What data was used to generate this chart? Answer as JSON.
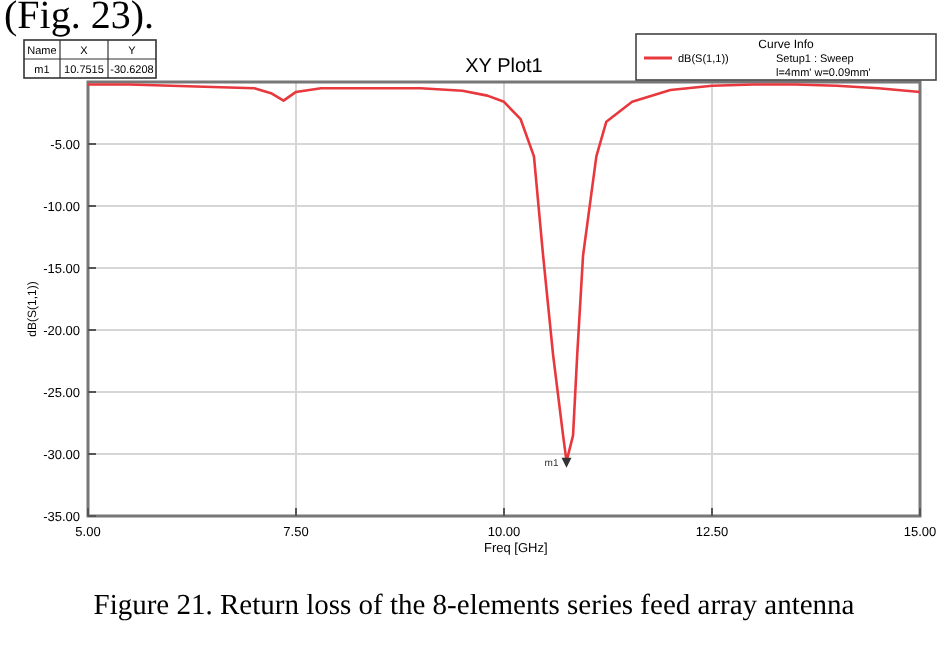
{
  "chart_data": {
    "type": "line",
    "title": "XY Plot1",
    "xlabel": "Freq [GHz]",
    "ylabel": "dB(S(1,1))",
    "legend_title": "Curve Info",
    "xlim": [
      5,
      15
    ],
    "xticks": [
      {
        "value": 5,
        "label": "5.00"
      },
      {
        "value": 7.5,
        "label": "7.50"
      },
      {
        "value": 10,
        "label": "10.00"
      },
      {
        "value": 12.5,
        "label": "12.50"
      },
      {
        "value": 15,
        "label": "15.00"
      }
    ],
    "ylim": [
      -35,
      0
    ],
    "yticks": [
      {
        "value": -35,
        "label": "-35.00"
      },
      {
        "value": -30,
        "label": "-30.00"
      },
      {
        "value": -25,
        "label": "-25.00"
      },
      {
        "value": -20,
        "label": "-20.00"
      },
      {
        "value": -15,
        "label": "-15.00"
      },
      {
        "value": -10,
        "label": "-10.00"
      },
      {
        "value": -5,
        "label": "-5.00"
      }
    ],
    "grid": true,
    "legend": "top right",
    "series": [
      {
        "name": "dB(S(1,1))",
        "color": "#e8383d",
        "x": [
          5,
          5.5,
          6,
          6.5,
          7,
          7.2,
          7.35,
          7.5,
          7.8,
          8,
          8.5,
          9,
          9.5,
          9.8,
          10,
          10.2,
          10.36,
          10.47,
          10.59,
          10.71,
          10.7515,
          10.83,
          10.88,
          10.95,
          11.11,
          11.23,
          11.54,
          12,
          12.5,
          13,
          13.5,
          14,
          14.5,
          15
        ],
        "values": [
          -0.2,
          -0.2,
          -0.3,
          -0.4,
          -0.5,
          -0.9,
          -1.5,
          -0.8,
          -0.5,
          -0.5,
          -0.5,
          -0.5,
          -0.7,
          -1.1,
          -1.6,
          -3,
          -6,
          -14,
          -22,
          -28.5,
          -30.6,
          -28.5,
          -22,
          -14,
          -6,
          -3.2,
          -1.6,
          -0.65,
          -0.3,
          -0.2,
          -0.2,
          -0.3,
          -0.5,
          -0.8
        ]
      }
    ],
    "annotations": [
      "(Fig. 23).",
      "Figure 21.  Return loss of the 8-elements series feed array antenna",
      "Setup1 : Sweep",
      "l=4mm' w=0.09mm'",
      "Name",
      "X",
      "Y",
      "m1",
      "10.7515",
      "-30.6208",
      {
        "text": "m1",
        "x": 10.7515,
        "y": -30.6208
      }
    ]
  }
}
